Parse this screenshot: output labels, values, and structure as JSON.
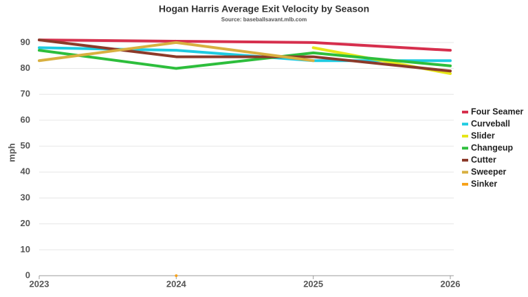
{
  "chart_data": {
    "type": "line",
    "title": "Hogan Harris Average Exit Velocity by Season",
    "subtitle": "Source: baseballsavant.mlb.com",
    "y_label": "mph",
    "x": [
      2023,
      2024,
      2025,
      2026
    ],
    "xlim": [
      2023,
      2026
    ],
    "xticks": [
      2023,
      2024,
      2025,
      2026
    ],
    "ylim": [
      0,
      95
    ],
    "yticks": [
      0,
      10,
      20,
      30,
      40,
      50,
      60,
      70,
      80,
      90
    ],
    "grid": true,
    "legend": "right",
    "series": [
      {
        "name": "Four Seamer",
        "color": "#d62f4d",
        "values": [
          91,
          90.5,
          90,
          87
        ]
      },
      {
        "name": "Curveball",
        "color": "#1ecbe1",
        "values": [
          88,
          87,
          83,
          83
        ]
      },
      {
        "name": "Slider",
        "color": "#e6e619",
        "values": [
          null,
          null,
          88,
          78
        ]
      },
      {
        "name": "Changeup",
        "color": "#2dbe3c",
        "values": [
          87,
          80,
          86,
          81
        ]
      },
      {
        "name": "Cutter",
        "color": "#8b3a2a",
        "values": [
          91,
          84.5,
          84.5,
          79
        ]
      },
      {
        "name": "Sweeper",
        "color": "#d8b040",
        "values": [
          83,
          90,
          83,
          null
        ]
      },
      {
        "name": "Sinker",
        "color": "#f7a21b",
        "values": [
          null,
          0,
          null,
          null
        ]
      }
    ]
  }
}
